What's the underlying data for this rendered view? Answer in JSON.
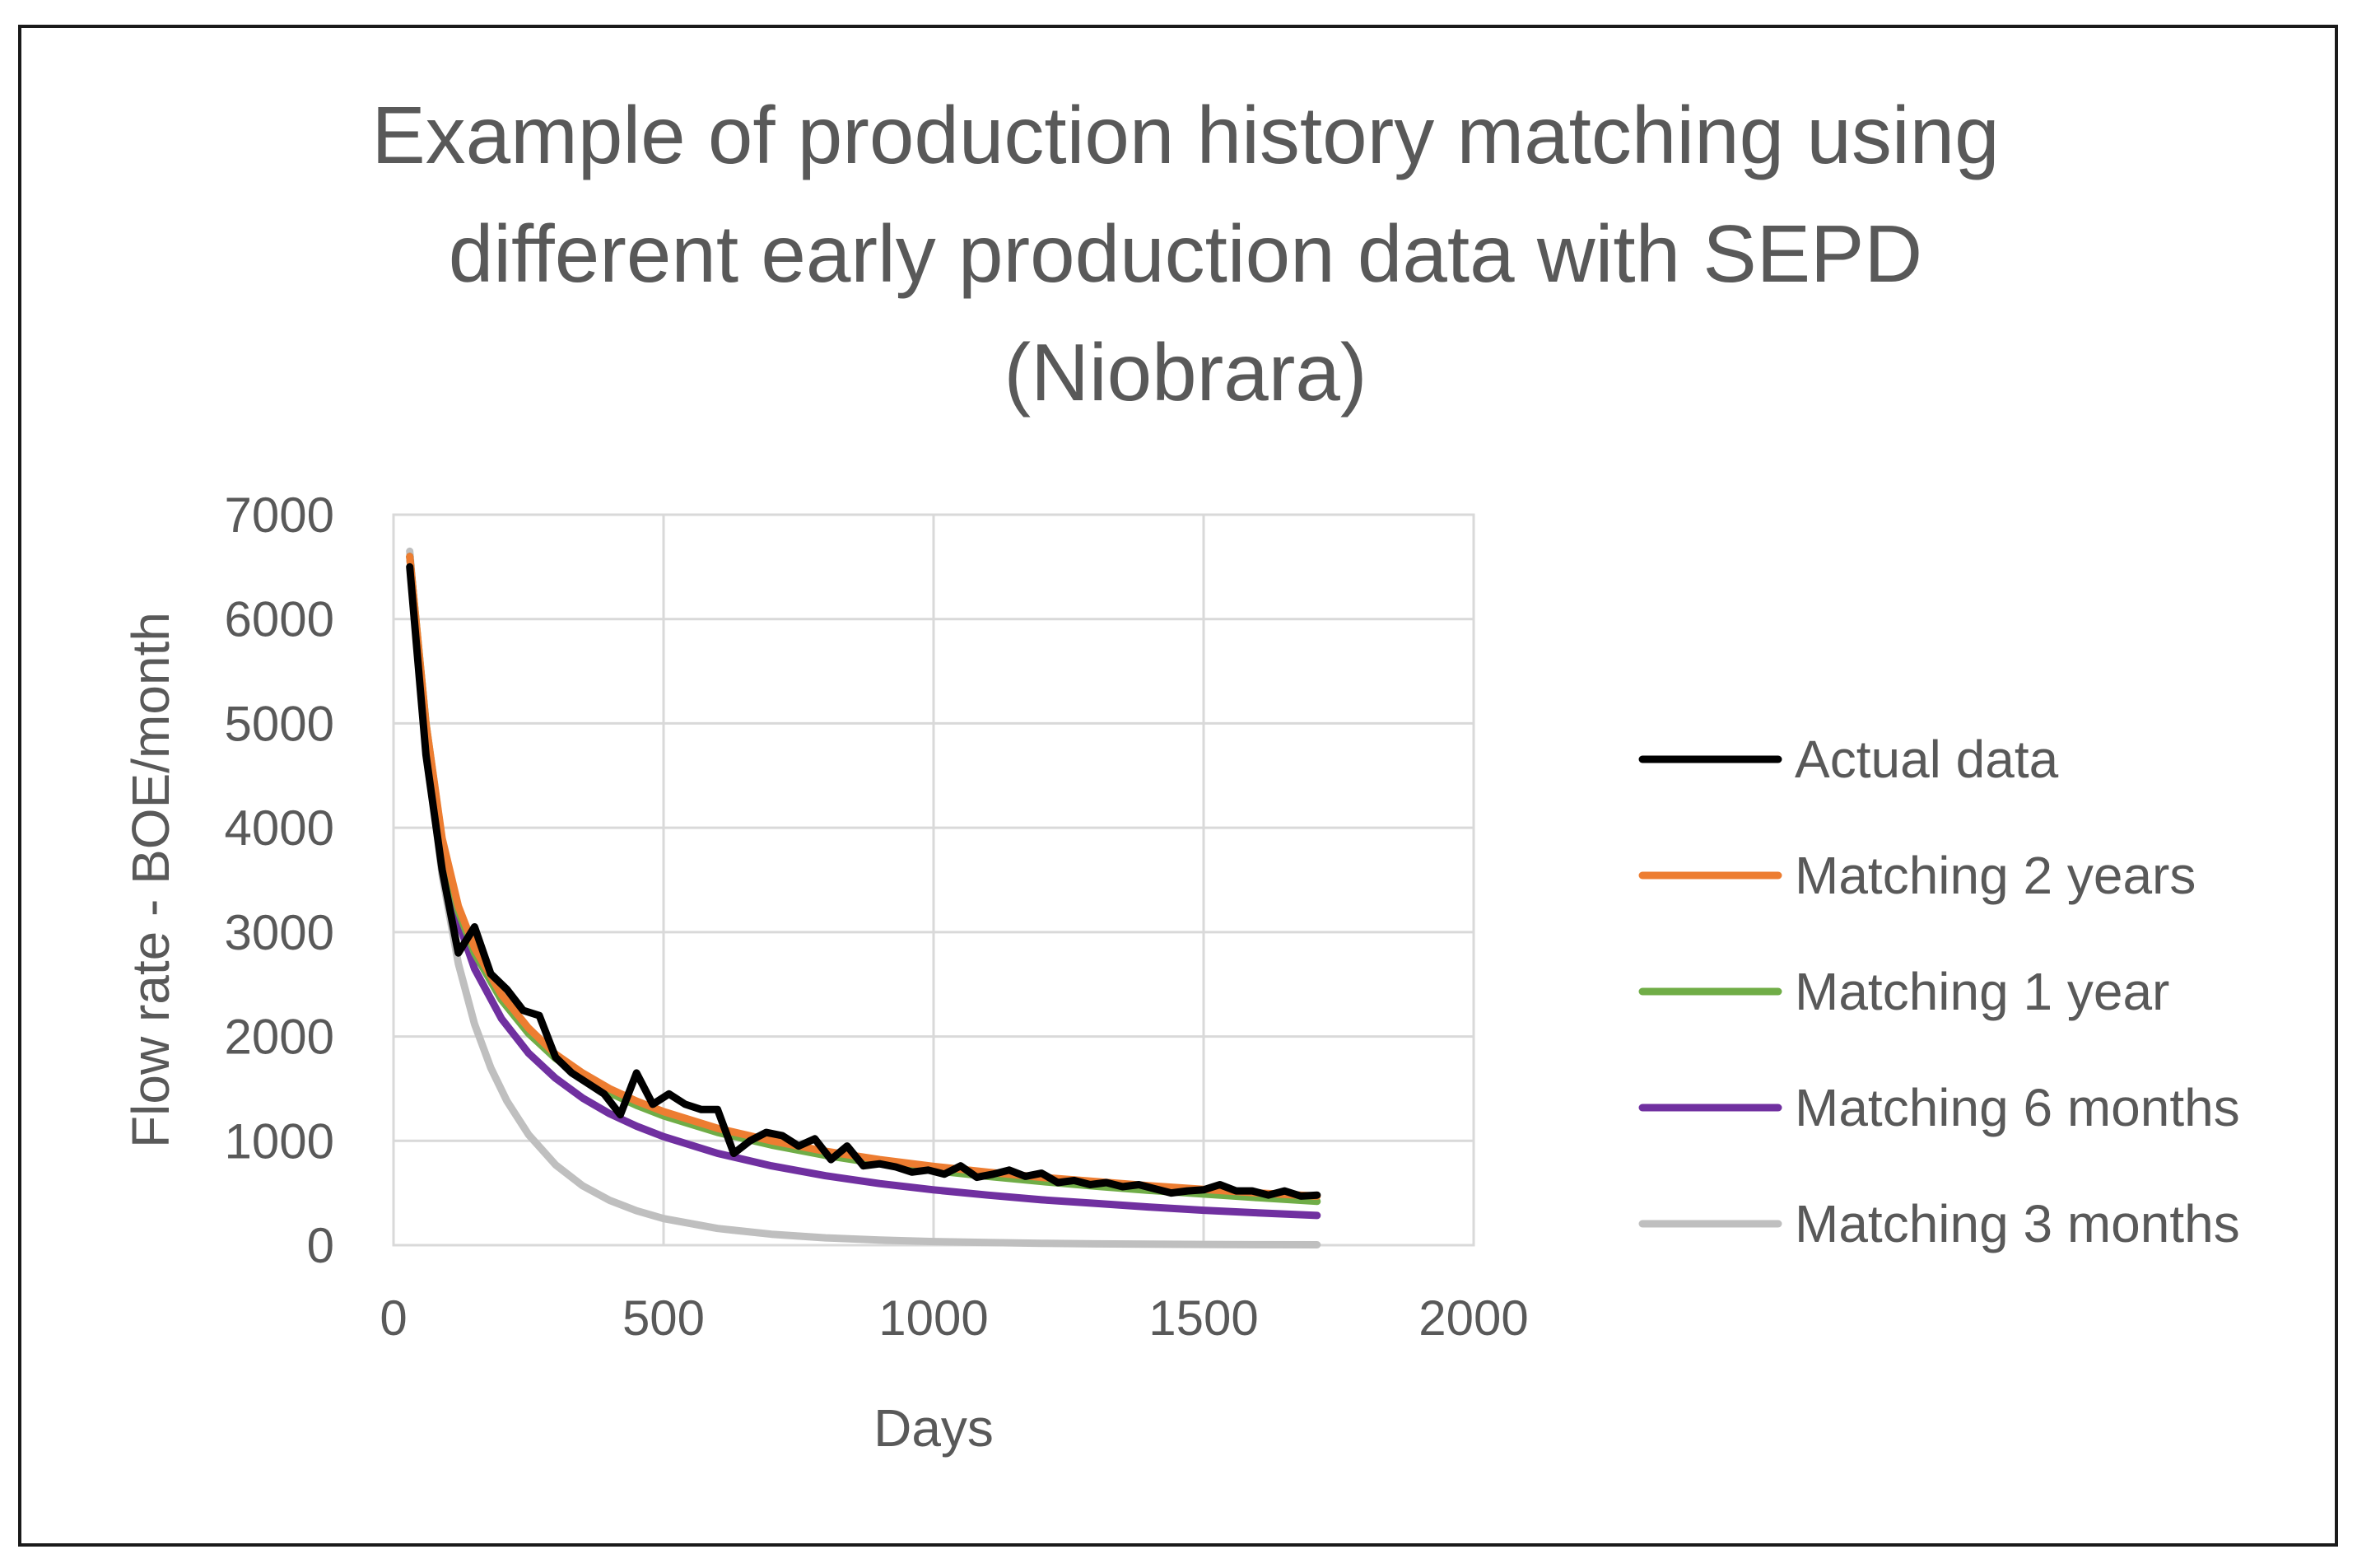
{
  "chart_data": {
    "type": "line",
    "title_lines": [
      "Example of production history matching using",
      "different early production data with SEPD",
      "(Niobrara)"
    ],
    "xlabel": "Days",
    "ylabel": "Flow rate - BOE/month",
    "xlim": [
      0,
      2000
    ],
    "ylim": [
      0,
      7000
    ],
    "x_ticks": [
      0,
      500,
      1000,
      1500,
      2000
    ],
    "y_ticks": [
      0,
      1000,
      2000,
      3000,
      4000,
      5000,
      6000,
      7000
    ],
    "x_tick_labels": [
      "0",
      "500",
      "1000",
      "1500",
      "2000"
    ],
    "y_tick_labels": [
      "0",
      "1000",
      "2000",
      "3000",
      "4000",
      "5000",
      "6000",
      "7000"
    ],
    "grid": true,
    "legend_position": "right",
    "series": [
      {
        "name": "Actual data",
        "color": "#000000",
        "x": [
          30,
          60,
          90,
          120,
          150,
          180,
          210,
          240,
          270,
          300,
          330,
          360,
          390,
          420,
          450,
          480,
          510,
          540,
          570,
          600,
          630,
          660,
          690,
          720,
          750,
          780,
          810,
          840,
          870,
          900,
          930,
          960,
          990,
          1020,
          1050,
          1080,
          1110,
          1140,
          1170,
          1200,
          1230,
          1260,
          1290,
          1320,
          1350,
          1380,
          1410,
          1440,
          1470,
          1500,
          1530,
          1560,
          1590,
          1620,
          1650,
          1680,
          1710
        ],
        "values": [
          6500,
          4700,
          3600,
          2800,
          3050,
          2600,
          2450,
          2250,
          2200,
          1800,
          1650,
          1550,
          1450,
          1250,
          1650,
          1350,
          1450,
          1350,
          1300,
          1300,
          880,
          1000,
          1080,
          1050,
          950,
          1020,
          820,
          950,
          760,
          780,
          750,
          700,
          720,
          680,
          760,
          650,
          680,
          720,
          660,
          690,
          600,
          620,
          580,
          600,
          560,
          580,
          540,
          500,
          520,
          530,
          580,
          520,
          520,
          480,
          520,
          470,
          480
        ]
      },
      {
        "name": "Matching 2 years",
        "color": "#ED7D31",
        "x": [
          30,
          60,
          90,
          120,
          150,
          200,
          250,
          300,
          350,
          400,
          450,
          500,
          600,
          700,
          800,
          900,
          1000,
          1100,
          1200,
          1300,
          1400,
          1500,
          1600,
          1710
        ],
        "values": [
          6600,
          5000,
          3900,
          3250,
          2850,
          2400,
          2080,
          1830,
          1650,
          1500,
          1380,
          1280,
          1120,
          1000,
          900,
          820,
          755,
          700,
          650,
          610,
          570,
          535,
          500,
          470
        ]
      },
      {
        "name": "Matching 1 year",
        "color": "#70AD47",
        "x": [
          30,
          60,
          90,
          120,
          150,
          200,
          250,
          300,
          350,
          400,
          450,
          500,
          600,
          700,
          800,
          900,
          1000,
          1100,
          1200,
          1300,
          1400,
          1500,
          1600,
          1710
        ],
        "values": [
          6600,
          5000,
          3880,
          3200,
          2800,
          2350,
          2030,
          1790,
          1610,
          1460,
          1340,
          1240,
          1080,
          960,
          860,
          780,
          715,
          660,
          610,
          565,
          525,
          490,
          455,
          420
        ]
      },
      {
        "name": "Matching 6 months",
        "color": "#7030A0",
        "x": [
          30,
          60,
          90,
          120,
          150,
          200,
          250,
          300,
          350,
          400,
          450,
          500,
          600,
          700,
          800,
          900,
          1000,
          1100,
          1200,
          1300,
          1400,
          1500,
          1600,
          1710
        ],
        "values": [
          6600,
          4950,
          3800,
          3100,
          2650,
          2170,
          1840,
          1600,
          1410,
          1260,
          1140,
          1040,
          880,
          760,
          665,
          590,
          530,
          480,
          435,
          400,
          365,
          335,
          310,
          285
        ]
      },
      {
        "name": "Matching 3 months",
        "color": "#BFBFBF",
        "x": [
          30,
          60,
          90,
          120,
          150,
          180,
          210,
          250,
          300,
          350,
          400,
          450,
          500,
          600,
          700,
          800,
          900,
          1000,
          1100,
          1200,
          1300,
          1400,
          1500,
          1600,
          1710
        ],
        "values": [
          6650,
          4800,
          3550,
          2700,
          2120,
          1700,
          1380,
          1060,
          770,
          570,
          430,
          330,
          255,
          160,
          105,
          70,
          50,
          35,
          25,
          18,
          13,
          10,
          7,
          5,
          4
        ]
      }
    ]
  }
}
